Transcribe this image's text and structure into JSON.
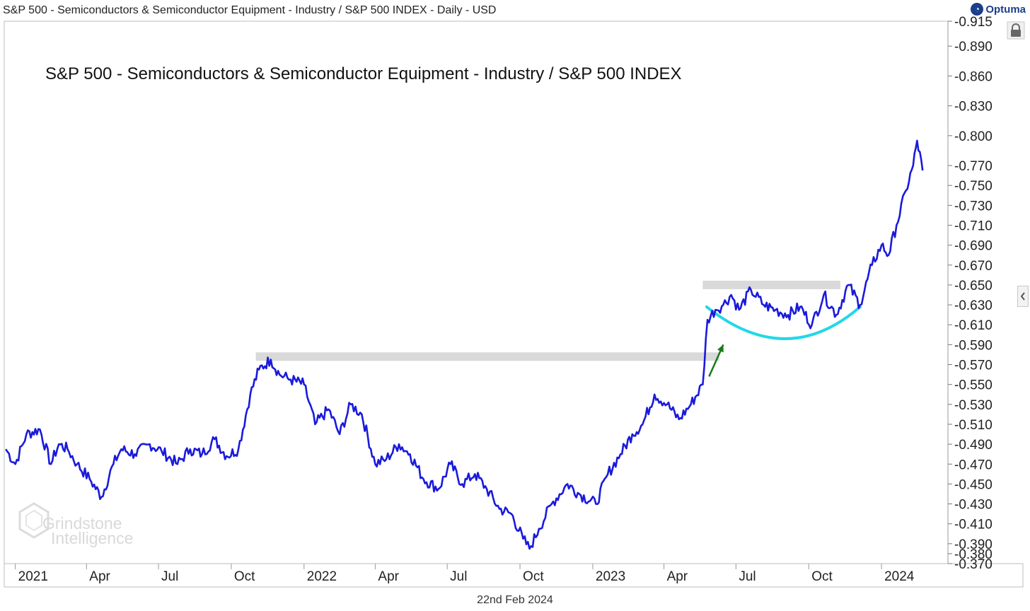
{
  "header": {
    "top_title": "S&P 500 - Semiconductors & Semiconductor Equipment - Industry / S&P 500 INDEX - Daily - USD",
    "brand": "Optuma",
    "brand_icon": "optuma-logo-icon"
  },
  "footer": {
    "date": "22nd Feb 2024"
  },
  "watermark": {
    "line1": "Grindstone",
    "line2": "Intelligence"
  },
  "icons": {
    "lock": "lock-icon",
    "collapse": "chevron-left-icon"
  },
  "colors": {
    "series": "#1a1adb",
    "support_band": "#d9d9d9",
    "arc": "#22d8e8",
    "arrow": "#1a7a1a"
  },
  "chart_data": {
    "type": "line",
    "title": "S&P 500 - Semiconductors & Semiconductor Equipment - Industry / S&P 500 INDEX",
    "xlabel": "",
    "ylabel": "",
    "grid": false,
    "ylim": [
      0.37,
      0.915
    ],
    "x_ticks": [
      "2021",
      "Apr",
      "Jul",
      "Oct",
      "2022",
      "Apr",
      "Jul",
      "Oct",
      "2023",
      "Apr",
      "Jul",
      "Oct",
      "2024"
    ],
    "y_ticks": [
      "0.370",
      "0.380",
      "0.390",
      "0.410",
      "0.430",
      "0.450",
      "0.470",
      "0.490",
      "0.510",
      "0.530",
      "0.550",
      "0.570",
      "0.590",
      "0.610",
      "0.630",
      "0.650",
      "0.670",
      "0.690",
      "0.710",
      "0.730",
      "0.750",
      "0.770",
      "0.800",
      "0.830",
      "0.860",
      "0.890",
      "0.915"
    ],
    "series": [
      {
        "x": [
          "2020-12-20",
          "2021-01-01",
          "2021-01-15",
          "2021-02-01",
          "2021-02-15",
          "2021-02-25",
          "2021-03-08",
          "2021-03-20",
          "2021-04-05",
          "2021-04-20",
          "2021-05-05",
          "2021-05-15",
          "2021-06-01",
          "2021-06-20",
          "2021-07-05",
          "2021-07-25",
          "2021-08-10",
          "2021-08-25",
          "2021-09-10",
          "2021-09-25",
          "2021-10-10",
          "2021-10-25",
          "2021-11-05",
          "2021-11-20",
          "2021-12-01",
          "2021-12-15",
          "2022-01-01",
          "2022-01-15",
          "2022-02-01",
          "2022-02-15",
          "2022-03-01",
          "2022-03-15",
          "2022-04-01",
          "2022-04-15",
          "2022-05-01",
          "2022-05-15",
          "2022-06-01",
          "2022-06-20",
          "2022-07-05",
          "2022-07-20",
          "2022-08-05",
          "2022-08-20",
          "2022-09-05",
          "2022-09-20",
          "2022-10-05",
          "2022-10-13",
          "2022-10-25",
          "2022-11-10",
          "2022-11-30",
          "2022-12-15",
          "2023-01-05",
          "2023-01-20",
          "2023-02-05",
          "2023-02-20",
          "2023-03-05",
          "2023-03-20",
          "2023-04-05",
          "2023-04-20",
          "2023-05-05",
          "2023-05-20",
          "2023-05-26",
          "2023-06-05",
          "2023-06-15",
          "2023-06-25",
          "2023-07-05",
          "2023-07-20",
          "2023-08-05",
          "2023-08-20",
          "2023-09-05",
          "2023-09-20",
          "2023-10-05",
          "2023-10-20",
          "2023-11-05",
          "2023-11-20",
          "2023-12-05",
          "2023-12-20",
          "2024-01-01",
          "2024-01-10",
          "2024-01-20",
          "2024-02-01",
          "2024-02-10",
          "2024-02-15",
          "2024-02-22"
        ],
        "values": [
          0.485,
          0.47,
          0.5,
          0.505,
          0.47,
          0.49,
          0.485,
          0.47,
          0.455,
          0.437,
          0.47,
          0.485,
          0.48,
          0.49,
          0.483,
          0.47,
          0.485,
          0.48,
          0.495,
          0.478,
          0.485,
          0.54,
          0.565,
          0.575,
          0.56,
          0.555,
          0.55,
          0.51,
          0.525,
          0.5,
          0.53,
          0.52,
          0.47,
          0.475,
          0.49,
          0.48,
          0.455,
          0.445,
          0.47,
          0.45,
          0.46,
          0.445,
          0.425,
          0.42,
          0.395,
          0.385,
          0.405,
          0.43,
          0.45,
          0.44,
          0.43,
          0.46,
          0.48,
          0.5,
          0.51,
          0.54,
          0.53,
          0.515,
          0.53,
          0.55,
          0.615,
          0.625,
          0.63,
          0.64,
          0.625,
          0.645,
          0.63,
          0.625,
          0.62,
          0.628,
          0.61,
          0.64,
          0.62,
          0.65,
          0.63,
          0.67,
          0.69,
          0.68,
          0.71,
          0.745,
          0.77,
          0.795,
          0.765
        ]
      }
    ],
    "annotations": [
      {
        "type": "resistance-band",
        "from": "2021-11-01",
        "to": "2023-06-10",
        "y": 0.578
      },
      {
        "type": "resistance-band",
        "from": "2023-05-20",
        "to": "2023-11-10",
        "y": 0.65
      },
      {
        "type": "arrow",
        "from": [
          "2023-05-28",
          0.558
        ],
        "to": [
          "2023-06-15",
          0.59
        ]
      },
      {
        "type": "arc",
        "from": [
          "2023-05-25",
          0.628
        ],
        "bottom": [
          "2023-09-01",
          0.596
        ],
        "to": [
          "2023-12-05",
          0.628
        ]
      }
    ]
  }
}
